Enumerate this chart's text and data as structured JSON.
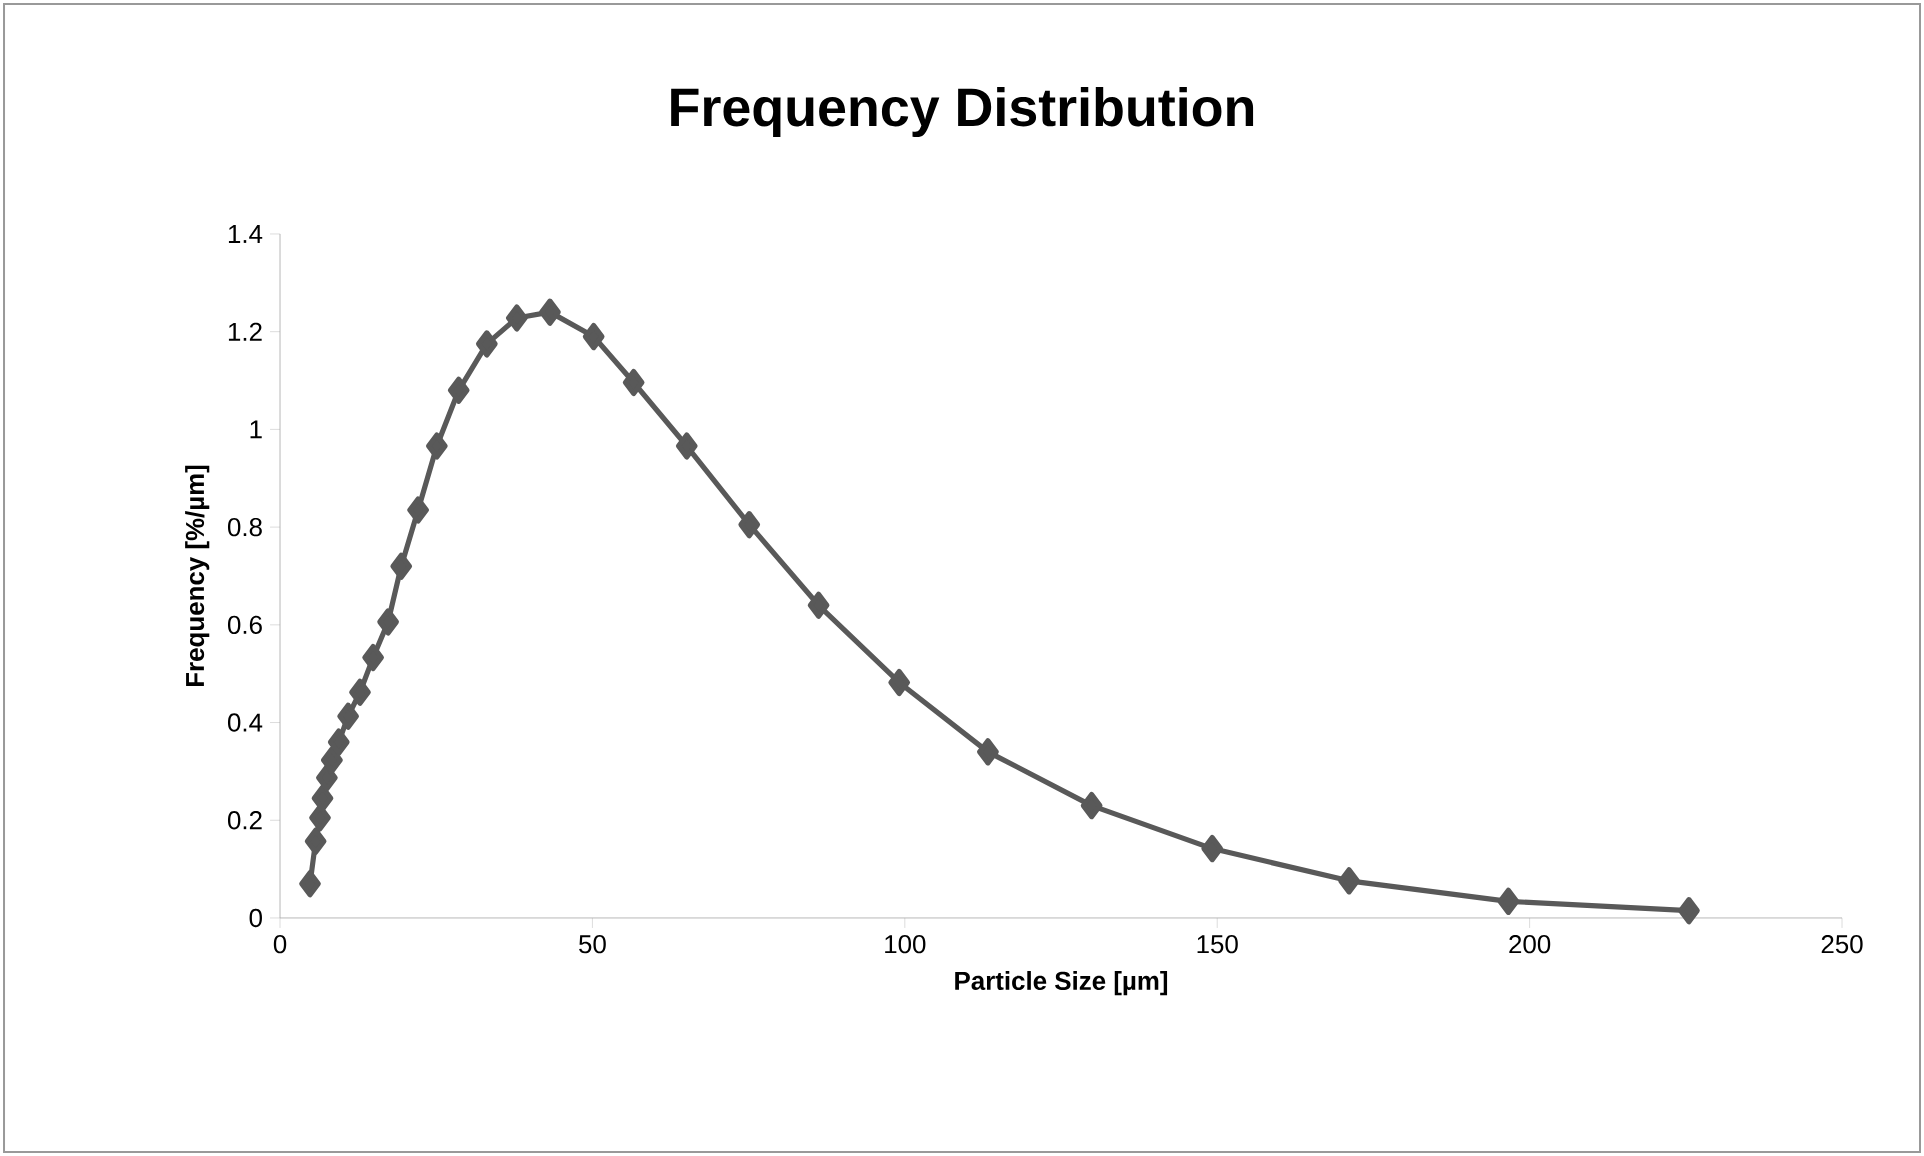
{
  "chart_data": {
    "type": "line",
    "title": "Frequency Distribution",
    "xlabel": "Particle Size [µm]",
    "ylabel": "Frequency [%/µm]",
    "xlim": [
      0,
      250
    ],
    "xticks": [
      0,
      50,
      100,
      150,
      200,
      250
    ],
    "ylim": [
      0,
      1.4
    ],
    "yticks": [
      0,
      0.2,
      0.4,
      0.6,
      0.8,
      1,
      1.2,
      1.4
    ],
    "marker": "diamond",
    "line_style": "solid",
    "grid": false,
    "series": [
      {
        "color": "#595959",
        "x": [
          4.8,
          5.7,
          6.4,
          6.8,
          7.5,
          8.3,
          9.4,
          10.9,
          12.8,
          14.9,
          17.3,
          19.4,
          22.1,
          25.1,
          28.6,
          33.1,
          37.9,
          43.2,
          50.2,
          56.6,
          65.1,
          75.1,
          86.2,
          99.1,
          113.3,
          129.9,
          149.2,
          171.1,
          196.6,
          225.5
        ],
        "values": [
          0.07,
          0.157,
          0.205,
          0.245,
          0.287,
          0.323,
          0.36,
          0.413,
          0.462,
          0.533,
          0.606,
          0.72,
          0.835,
          0.966,
          1.08,
          1.175,
          1.228,
          1.24,
          1.19,
          1.096,
          0.966,
          0.805,
          0.64,
          0.482,
          0.34,
          0.23,
          0.142,
          0.076,
          0.034,
          0.015
        ]
      }
    ]
  }
}
